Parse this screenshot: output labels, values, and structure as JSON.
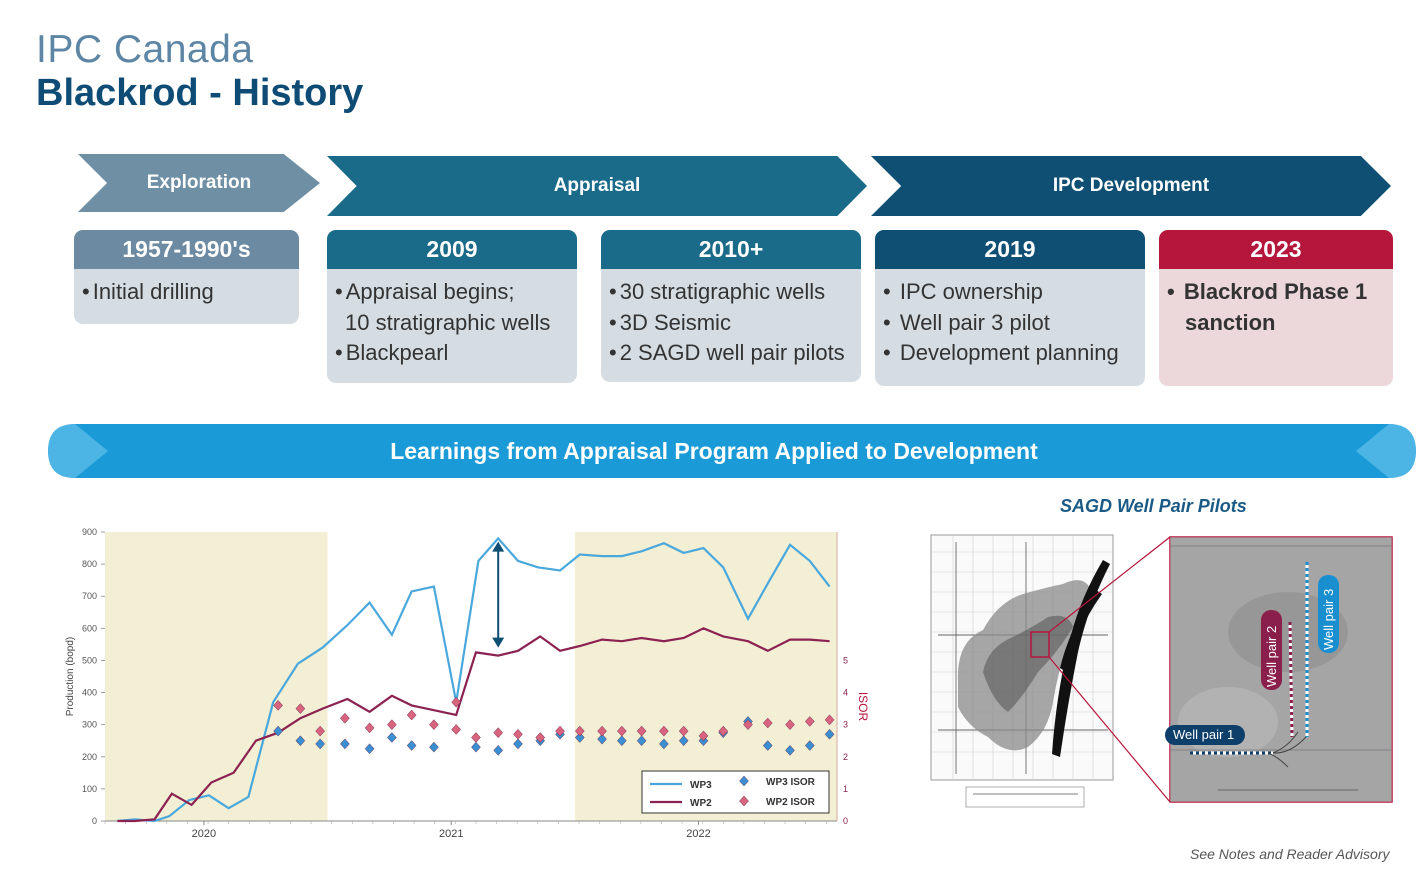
{
  "header": {
    "company": "IPC Canada",
    "title": "Blackrod - History"
  },
  "phases": [
    {
      "label": "Exploration",
      "color": "#6f8fa5"
    },
    {
      "label": "Appraisal",
      "color": "#1a6a8a"
    },
    {
      "label": "IPC Development",
      "color": "#0e4f73"
    }
  ],
  "milestones": [
    {
      "year": "1957-1990's",
      "items": [
        "Initial drilling"
      ]
    },
    {
      "year": "2009",
      "items": [
        "Appraisal begins;",
        "10 stratigraphic wells",
        "Blackpearl"
      ]
    },
    {
      "year": "2010+",
      "items": [
        "30 stratigraphic wells",
        "3D Seismic",
        "2 SAGD well pair pilots"
      ]
    },
    {
      "year": "2019",
      "items": [
        "IPC ownership",
        "Well pair 3 pilot",
        "Development planning"
      ]
    },
    {
      "year": "2023",
      "items": [
        "Blackrod Phase 1",
        "sanction"
      ]
    }
  ],
  "banner": {
    "text": "Learnings from Appraisal Program Applied to Development"
  },
  "pilots": {
    "title": "SAGD Well Pair Pilots",
    "well_labels": [
      "Well pair 1",
      "Well pair 2",
      "Well pair 3"
    ]
  },
  "footer": {
    "advisory": "See Notes and Reader Advisory"
  },
  "chart_data": {
    "type": "line",
    "ylabel": "Production (bopd)",
    "y2label": "ISOR",
    "ylim": [
      0,
      900
    ],
    "y2lim": [
      0,
      9
    ],
    "yticks": [
      0,
      100,
      200,
      300,
      400,
      500,
      600,
      700,
      800,
      900
    ],
    "y2ticks": [
      0,
      1,
      2,
      3,
      4,
      5
    ],
    "x_range": [
      2019.6,
      2022.56
    ],
    "xticks": [
      {
        "label": "2020",
        "x": 2020.0
      },
      {
        "label": "2021",
        "x": 2021.0
      },
      {
        "label": "2022",
        "x": 2022.0
      }
    ],
    "shaded_ranges": [
      [
        2019.6,
        2020.5
      ],
      [
        2021.5,
        2022.56
      ]
    ],
    "arrow": {
      "x": 2021.19,
      "from": 870,
      "to": 540
    },
    "series": [
      {
        "name": "WP3",
        "type": "line",
        "axis": "left",
        "color": "#4aa8dc",
        "points": [
          [
            2019.65,
            0
          ],
          [
            2019.72,
            5
          ],
          [
            2019.8,
            0
          ],
          [
            2019.86,
            15
          ],
          [
            2019.94,
            65
          ],
          [
            2020.02,
            80
          ],
          [
            2020.1,
            40
          ],
          [
            2020.18,
            75
          ],
          [
            2020.28,
            370
          ],
          [
            2020.38,
            490
          ],
          [
            2020.48,
            540
          ],
          [
            2020.58,
            610
          ],
          [
            2020.67,
            680
          ],
          [
            2020.76,
            580
          ],
          [
            2020.84,
            715
          ],
          [
            2020.93,
            730
          ],
          [
            2021.02,
            370
          ],
          [
            2021.11,
            810
          ],
          [
            2021.19,
            880
          ],
          [
            2021.27,
            810
          ],
          [
            2021.35,
            790
          ],
          [
            2021.44,
            780
          ],
          [
            2021.52,
            830
          ],
          [
            2021.61,
            825
          ],
          [
            2021.69,
            825
          ],
          [
            2021.77,
            840
          ],
          [
            2021.86,
            865
          ],
          [
            2021.94,
            835
          ],
          [
            2022.02,
            850
          ],
          [
            2022.1,
            790
          ],
          [
            2022.2,
            630
          ],
          [
            2022.28,
            740
          ],
          [
            2022.37,
            860
          ],
          [
            2022.45,
            810
          ],
          [
            2022.53,
            730
          ]
        ]
      },
      {
        "name": "WP2",
        "type": "line",
        "axis": "left",
        "color": "#8b2252",
        "points": [
          [
            2019.65,
            0
          ],
          [
            2019.72,
            0
          ],
          [
            2019.8,
            5
          ],
          [
            2019.87,
            85
          ],
          [
            2019.95,
            50
          ],
          [
            2020.03,
            120
          ],
          [
            2020.12,
            150
          ],
          [
            2020.21,
            250
          ],
          [
            2020.3,
            275
          ],
          [
            2020.39,
            320
          ],
          [
            2020.48,
            350
          ],
          [
            2020.58,
            380
          ],
          [
            2020.67,
            340
          ],
          [
            2020.76,
            390
          ],
          [
            2020.84,
            360
          ],
          [
            2020.93,
            345
          ],
          [
            2021.02,
            330
          ],
          [
            2021.1,
            525
          ],
          [
            2021.19,
            515
          ],
          [
            2021.27,
            530
          ],
          [
            2021.36,
            575
          ],
          [
            2021.44,
            530
          ],
          [
            2021.52,
            545
          ],
          [
            2021.61,
            565
          ],
          [
            2021.69,
            560
          ],
          [
            2021.77,
            570
          ],
          [
            2021.86,
            560
          ],
          [
            2021.94,
            570
          ],
          [
            2022.02,
            600
          ],
          [
            2022.1,
            575
          ],
          [
            2022.2,
            560
          ],
          [
            2022.28,
            530
          ],
          [
            2022.37,
            565
          ],
          [
            2022.45,
            565
          ],
          [
            2022.53,
            560
          ]
        ]
      },
      {
        "name": "WP3 ISOR",
        "type": "scatter",
        "axis": "right",
        "color": "#3a8fd3",
        "points": [
          [
            2020.3,
            2.8
          ],
          [
            2020.39,
            2.5
          ],
          [
            2020.47,
            2.4
          ],
          [
            2020.57,
            2.4
          ],
          [
            2020.67,
            2.25
          ],
          [
            2020.76,
            2.6
          ],
          [
            2020.84,
            2.35
          ],
          [
            2020.93,
            2.3
          ],
          [
            2021.1,
            2.3
          ],
          [
            2021.19,
            2.2
          ],
          [
            2021.27,
            2.4
          ],
          [
            2021.36,
            2.5
          ],
          [
            2021.44,
            2.7
          ],
          [
            2021.52,
            2.6
          ],
          [
            2021.61,
            2.55
          ],
          [
            2021.69,
            2.5
          ],
          [
            2021.77,
            2.5
          ],
          [
            2021.86,
            2.4
          ],
          [
            2021.94,
            2.5
          ],
          [
            2022.02,
            2.5
          ],
          [
            2022.1,
            2.75
          ],
          [
            2022.2,
            3.1
          ],
          [
            2022.28,
            2.35
          ],
          [
            2022.37,
            2.2
          ],
          [
            2022.45,
            2.35
          ],
          [
            2022.53,
            2.7
          ]
        ]
      },
      {
        "name": "WP2 ISOR",
        "type": "scatter",
        "axis": "right",
        "color": "#d9647f",
        "points": [
          [
            2020.3,
            3.6
          ],
          [
            2020.39,
            3.5
          ],
          [
            2020.47,
            2.8
          ],
          [
            2020.57,
            3.2
          ],
          [
            2020.67,
            2.9
          ],
          [
            2020.76,
            3.0
          ],
          [
            2020.84,
            3.3
          ],
          [
            2020.93,
            3.0
          ],
          [
            2021.02,
            3.7
          ],
          [
            2021.02,
            2.85
          ],
          [
            2021.1,
            2.6
          ],
          [
            2021.19,
            2.75
          ],
          [
            2021.27,
            2.7
          ],
          [
            2021.36,
            2.6
          ],
          [
            2021.44,
            2.8
          ],
          [
            2021.52,
            2.8
          ],
          [
            2021.61,
            2.8
          ],
          [
            2021.69,
            2.8
          ],
          [
            2021.77,
            2.8
          ],
          [
            2021.86,
            2.8
          ],
          [
            2021.94,
            2.8
          ],
          [
            2022.02,
            2.65
          ],
          [
            2022.1,
            2.8
          ],
          [
            2022.2,
            3.0
          ],
          [
            2022.28,
            3.05
          ],
          [
            2022.37,
            3.0
          ],
          [
            2022.45,
            3.1
          ],
          [
            2022.53,
            3.15
          ]
        ]
      }
    ]
  }
}
